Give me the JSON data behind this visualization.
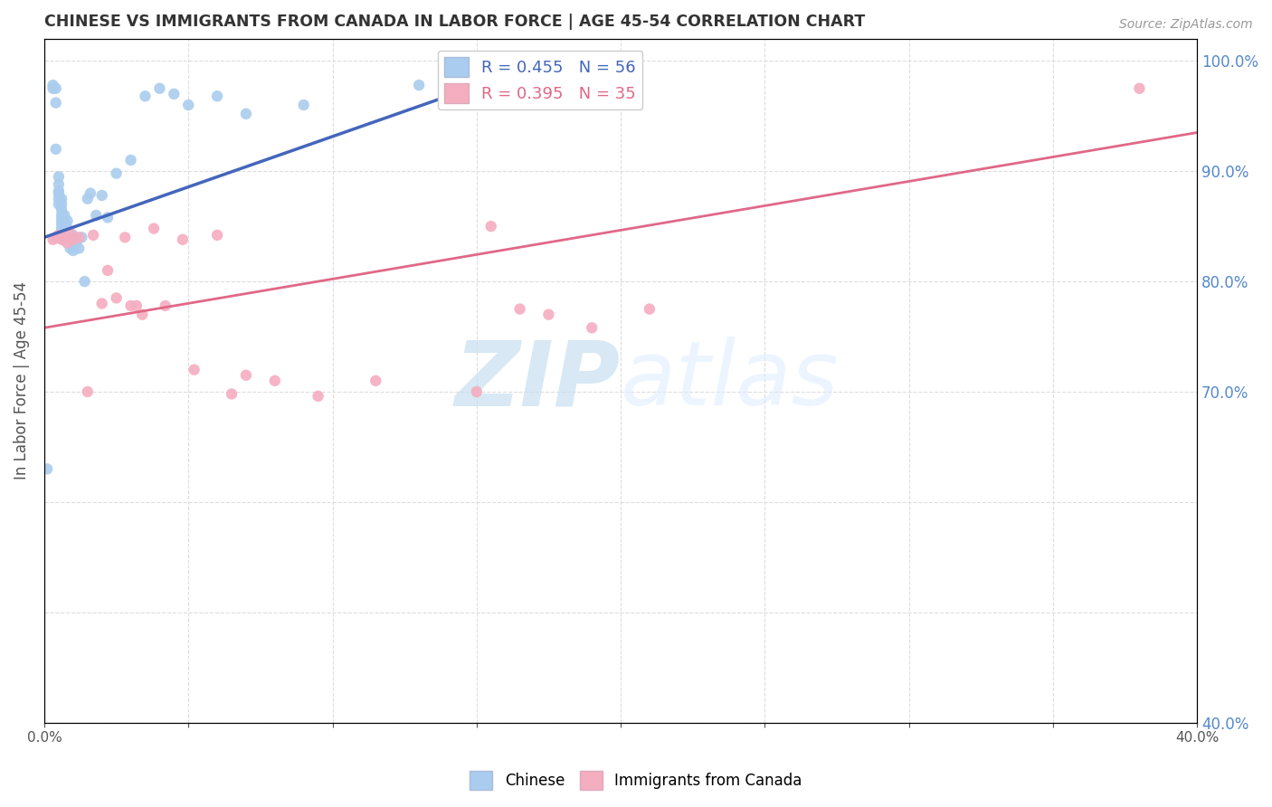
{
  "title": "CHINESE VS IMMIGRANTS FROM CANADA IN LABOR FORCE | AGE 45-54 CORRELATION CHART",
  "source": "Source: ZipAtlas.com",
  "ylabel": "In Labor Force | Age 45-54",
  "xlim": [
    0.0,
    0.4
  ],
  "ylim": [
    0.4,
    1.02
  ],
  "yticks": [
    0.4,
    0.5,
    0.6,
    0.7,
    0.8,
    0.9,
    1.0
  ],
  "xtick_positions": [
    0.0,
    0.05,
    0.1,
    0.15,
    0.2,
    0.25,
    0.3,
    0.35,
    0.4
  ],
  "right_ytick_positions": [
    1.0,
    0.9,
    0.8,
    0.7,
    0.4
  ],
  "right_ytick_labels": [
    "100.0%",
    "90.0%",
    "80.0%",
    "70.0%",
    "40.0%"
  ],
  "legend_blue_label": "R = 0.455   N = 56",
  "legend_pink_label": "R = 0.395   N = 35",
  "bottom_legend_blue": "Chinese",
  "bottom_legend_pink": "Immigrants from Canada",
  "blue_scatter_x": [
    0.001,
    0.003,
    0.003,
    0.004,
    0.004,
    0.004,
    0.005,
    0.005,
    0.005,
    0.005,
    0.005,
    0.005,
    0.006,
    0.006,
    0.006,
    0.006,
    0.006,
    0.006,
    0.006,
    0.007,
    0.007,
    0.007,
    0.007,
    0.007,
    0.007,
    0.007,
    0.008,
    0.008,
    0.008,
    0.008,
    0.008,
    0.009,
    0.009,
    0.009,
    0.01,
    0.01,
    0.011,
    0.012,
    0.013,
    0.014,
    0.015,
    0.016,
    0.018,
    0.02,
    0.022,
    0.025,
    0.03,
    0.035,
    0.04,
    0.045,
    0.05,
    0.06,
    0.07,
    0.09,
    0.13,
    0.15
  ],
  "blue_scatter_y": [
    0.63,
    0.975,
    0.978,
    0.92,
    0.962,
    0.975,
    0.87,
    0.875,
    0.88,
    0.882,
    0.888,
    0.895,
    0.848,
    0.852,
    0.856,
    0.86,
    0.865,
    0.87,
    0.875,
    0.838,
    0.842,
    0.845,
    0.848,
    0.852,
    0.855,
    0.86,
    0.835,
    0.838,
    0.842,
    0.848,
    0.855,
    0.83,
    0.835,
    0.84,
    0.828,
    0.842,
    0.835,
    0.83,
    0.84,
    0.8,
    0.875,
    0.88,
    0.86,
    0.878,
    0.858,
    0.898,
    0.91,
    0.968,
    0.975,
    0.97,
    0.96,
    0.968,
    0.952,
    0.96,
    0.978,
    0.975
  ],
  "pink_scatter_x": [
    0.003,
    0.004,
    0.005,
    0.006,
    0.007,
    0.008,
    0.009,
    0.01,
    0.012,
    0.015,
    0.017,
    0.02,
    0.022,
    0.025,
    0.028,
    0.03,
    0.032,
    0.034,
    0.038,
    0.042,
    0.048,
    0.052,
    0.06,
    0.065,
    0.07,
    0.08,
    0.095,
    0.115,
    0.15,
    0.155,
    0.165,
    0.175,
    0.19,
    0.21,
    0.38
  ],
  "pink_scatter_y": [
    0.838,
    0.84,
    0.842,
    0.838,
    0.84,
    0.835,
    0.844,
    0.838,
    0.84,
    0.7,
    0.842,
    0.78,
    0.81,
    0.785,
    0.84,
    0.778,
    0.778,
    0.77,
    0.848,
    0.778,
    0.838,
    0.72,
    0.842,
    0.698,
    0.715,
    0.71,
    0.696,
    0.71,
    0.7,
    0.85,
    0.775,
    0.77,
    0.758,
    0.775,
    0.975
  ],
  "blue_line_x": [
    0.0,
    0.175
  ],
  "blue_line_y": [
    0.84,
    1.0
  ],
  "pink_line_x": [
    0.0,
    0.4
  ],
  "pink_line_y": [
    0.758,
    0.935
  ],
  "scatter_color_blue": "#aaccee",
  "scatter_color_pink": "#f5adc0",
  "line_color_blue": "#4466bb",
  "line_color_pink": "#e06888",
  "watermark_zip": "ZIP",
  "watermark_atlas": "atlas",
  "watermark_color": "#c8dff0",
  "background_color": "#ffffff",
  "grid_color": "#dddddd",
  "title_color": "#333333",
  "source_color": "#999999",
  "right_axis_color": "#5588cc"
}
